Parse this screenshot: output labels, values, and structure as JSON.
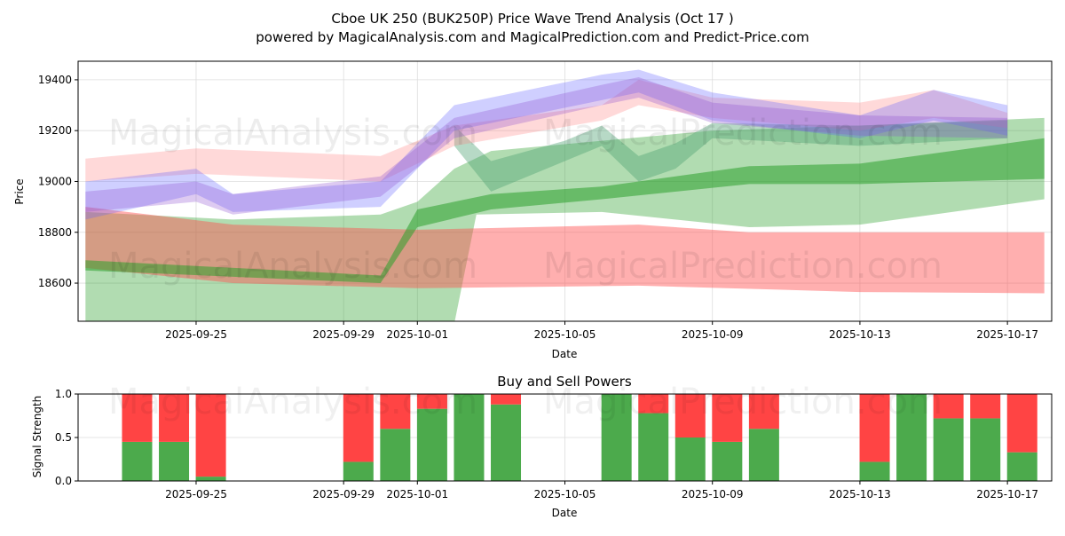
{
  "chart_data": [
    {
      "type": "area",
      "title": "Cboe UK 250 (BUK250P) Price Wave Trend Analysis (Oct 17 )",
      "subtitle": "powered by MagicalAnalysis.com and MagicalPrediction.com and Predict-Price.com",
      "xlabel": "Date",
      "ylabel": "Price",
      "xlim": [
        "2025-09-21.8",
        "2025-10-18.2"
      ],
      "ylim": [
        18450,
        19473
      ],
      "yticks": [
        18600,
        18800,
        19000,
        19200,
        19400
      ],
      "xticks": [
        "2025-09-25",
        "2025-09-29",
        "2025-10-01",
        "2025-10-05",
        "2025-10-09",
        "2025-10-13",
        "2025-10-17"
      ],
      "grid": true,
      "watermarks": [
        "MagicalAnalysis.com",
        "MagicalPrediction.com"
      ],
      "bands": [
        {
          "name": "green-wide",
          "color": "#2ca02c",
          "opacity": 0.37,
          "upper": [
            [
              "09-22",
              18880
            ],
            [
              "09-26",
              18850
            ],
            [
              "09-30",
              18870
            ],
            [
              "10-01",
              18920
            ],
            [
              "10-02",
              19050
            ],
            [
              "10-03",
              19120
            ],
            [
              "10-06",
              19160
            ],
            [
              "10-09",
              19200
            ],
            [
              "10-13",
              19220
            ],
            [
              "10-18",
              19250
            ]
          ],
          "lower": [
            [
              "09-22",
              18450
            ],
            [
              "10-02",
              18440
            ],
            [
              "10-02.6",
              18870
            ],
            [
              "10-06",
              18880
            ],
            [
              "10-10",
              18820
            ],
            [
              "10-13",
              18830
            ],
            [
              "10-15",
              18870
            ],
            [
              "10-18",
              18930
            ]
          ]
        },
        {
          "name": "red",
          "color": "#ff4d4d",
          "opacity": 0.45,
          "upper": [
            [
              "09-22",
              18900
            ],
            [
              "09-26",
              18830
            ],
            [
              "10-01",
              18810
            ],
            [
              "10-07",
              18830
            ],
            [
              "10-10",
              18800
            ],
            [
              "10-18",
              18800
            ]
          ],
          "lower": [
            [
              "09-22",
              18660
            ],
            [
              "09-26",
              18600
            ],
            [
              "10-01",
              18580
            ],
            [
              "10-07",
              18590
            ],
            [
              "10-13",
              18565
            ],
            [
              "10-18",
              18560
            ]
          ]
        },
        {
          "name": "green-dark",
          "color": "#2ca02c",
          "opacity": 0.55,
          "upper": [
            [
              "09-22",
              18690
            ],
            [
              "09-30",
              18630
            ],
            [
              "10-01",
              18890
            ],
            [
              "10-03",
              18950
            ],
            [
              "10-06",
              18980
            ],
            [
              "10-10",
              19060
            ],
            [
              "10-13",
              19070
            ],
            [
              "10-18",
              19170
            ]
          ],
          "lower": [
            [
              "09-22",
              18650
            ],
            [
              "09-30",
              18600
            ],
            [
              "10-01",
              18820
            ],
            [
              "10-03",
              18890
            ],
            [
              "10-06",
              18930
            ],
            [
              "10-10",
              18990
            ],
            [
              "10-13",
              18990
            ],
            [
              "10-18",
              19010
            ]
          ]
        },
        {
          "name": "green-zigzag",
          "color": "#4aa070",
          "opacity": 0.4,
          "upper": [
            [
              "10-02",
              19220
            ],
            [
              "10-03",
              19080
            ],
            [
              "10-05",
              19160
            ],
            [
              "10-06",
              19220
            ],
            [
              "10-07",
              19100
            ],
            [
              "10-08",
              19150
            ],
            [
              "10-09",
              19230
            ],
            [
              "10-13",
              19220
            ],
            [
              "10-17",
              19240
            ]
          ],
          "lower": [
            [
              "10-02",
              19140
            ],
            [
              "10-03",
              18960
            ],
            [
              "10-05",
              19080
            ],
            [
              "10-06",
              19140
            ],
            [
              "10-07",
              19000
            ],
            [
              "10-08",
              19050
            ],
            [
              "10-09",
              19170
            ],
            [
              "10-13",
              19140
            ],
            [
              "10-17",
              19170
            ]
          ]
        },
        {
          "name": "pink",
          "color": "#ff8080",
          "opacity": 0.3,
          "upper": [
            [
              "09-22",
              19090
            ],
            [
              "09-25",
              19130
            ],
            [
              "09-30",
              19100
            ],
            [
              "10-02",
              19220
            ],
            [
              "10-06",
              19300
            ],
            [
              "10-07",
              19400
            ],
            [
              "10-09",
              19330
            ],
            [
              "10-13",
              19310
            ],
            [
              "10-15",
              19360
            ],
            [
              "10-17",
              19270
            ]
          ],
          "lower": [
            [
              "09-22",
              19000
            ],
            [
              "09-25",
              19030
            ],
            [
              "09-30",
              19000
            ],
            [
              "10-02",
              19140
            ],
            [
              "10-06",
              19240
            ],
            [
              "10-07",
              19300
            ],
            [
              "10-09",
              19250
            ],
            [
              "10-13",
              19200
            ],
            [
              "10-15",
              19250
            ],
            [
              "10-17",
              19210
            ]
          ]
        },
        {
          "name": "blue",
          "color": "#6060ff",
          "opacity": 0.3,
          "upper": [
            [
              "09-22",
              19000
            ],
            [
              "09-25",
              19050
            ],
            [
              "09-26",
              18950
            ],
            [
              "09-30",
              19000
            ],
            [
              "10-01",
              19150
            ],
            [
              "10-02",
              19300
            ],
            [
              "10-06",
              19420
            ],
            [
              "10-07",
              19440
            ],
            [
              "10-09",
              19350
            ],
            [
              "10-13",
              19260
            ],
            [
              "10-15",
              19360
            ],
            [
              "10-17",
              19300
            ]
          ],
          "lower": [
            [
              "09-22",
              18850
            ],
            [
              "09-25",
              18950
            ],
            [
              "09-26",
              18880
            ],
            [
              "09-30",
              18900
            ],
            [
              "10-01",
              19050
            ],
            [
              "10-02",
              19200
            ],
            [
              "10-06",
              19320
            ],
            [
              "10-07",
              19350
            ],
            [
              "10-09",
              19240
            ],
            [
              "10-13",
              19170
            ],
            [
              "10-15",
              19240
            ],
            [
              "10-17",
              19180
            ]
          ]
        },
        {
          "name": "purple",
          "color": "#9050d0",
          "opacity": 0.3,
          "upper": [
            [
              "09-22",
              18960
            ],
            [
              "09-25",
              19000
            ],
            [
              "09-26",
              18950
            ],
            [
              "09-30",
              19020
            ],
            [
              "10-02",
              19250
            ],
            [
              "10-06",
              19380
            ],
            [
              "10-07",
              19410
            ],
            [
              "10-09",
              19310
            ],
            [
              "10-13",
              19260
            ],
            [
              "10-17",
              19250
            ]
          ],
          "lower": [
            [
              "09-22",
              18880
            ],
            [
              "09-25",
              18920
            ],
            [
              "09-26",
              18870
            ],
            [
              "09-30",
              18940
            ],
            [
              "10-02",
              19170
            ],
            [
              "10-06",
              19300
            ],
            [
              "10-07",
              19330
            ],
            [
              "10-09",
              19230
            ],
            [
              "10-13",
              19180
            ],
            [
              "10-17",
              19170
            ]
          ]
        }
      ]
    },
    {
      "type": "bar",
      "title": "Buy and Sell Powers",
      "xlabel": "Date",
      "ylabel": "Signal Strength",
      "ylim": [
        0,
        1
      ],
      "yticks": [
        "0.0",
        "0.5",
        "1.0"
      ],
      "xticks": [
        "2025-09-25",
        "2025-09-29",
        "2025-10-01",
        "2025-10-05",
        "2025-10-09",
        "2025-10-13",
        "2025-10-17"
      ],
      "categories": [
        "09-24",
        "09-25",
        "09-26",
        "09-30",
        "10-01",
        "10-02",
        "10-03",
        "10-04",
        "10-07",
        "10-08",
        "10-09",
        "10-10",
        "10-11",
        "10-14",
        "10-15",
        "10-16",
        "10-17",
        "10-18"
      ],
      "series": [
        {
          "name": "Buy",
          "color": "#4caa4c",
          "values": [
            0.45,
            0.45,
            0.05,
            0.22,
            0.6,
            0.83,
            1.0,
            0.88,
            1.0,
            0.78,
            0.5,
            0.45,
            0.6,
            0.22,
            1.0,
            0.72,
            0.72,
            0.33
          ]
        },
        {
          "name": "Sell",
          "color": "#ff4444",
          "values": [
            0.55,
            0.55,
            0.95,
            0.78,
            0.4,
            0.17,
            0.0,
            0.12,
            0.0,
            0.22,
            0.5,
            0.55,
            0.4,
            0.78,
            0.0,
            0.28,
            0.28,
            0.67
          ]
        }
      ]
    }
  ]
}
